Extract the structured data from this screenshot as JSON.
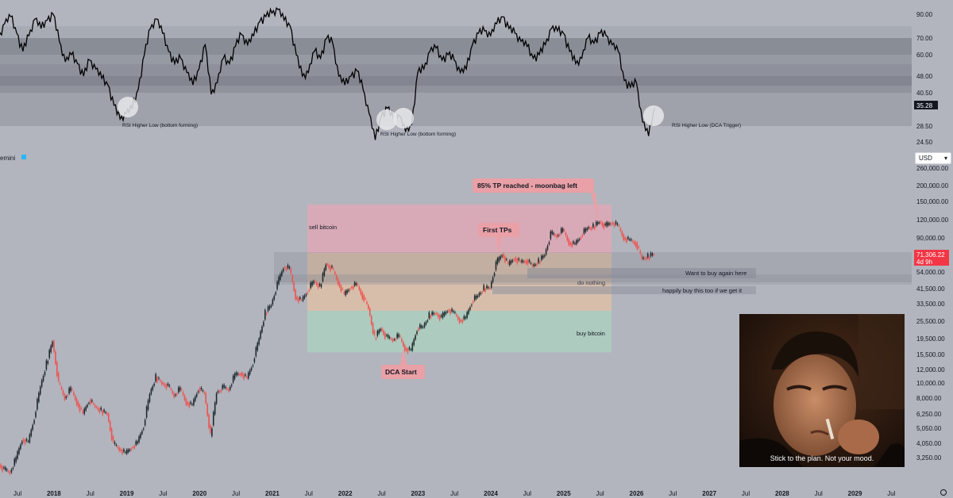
{
  "chart_data": [
    {
      "type": "line",
      "panel": "RSI",
      "y_ticks": [
        "90.00",
        "70.00",
        "60.00",
        "48.00",
        "40.50",
        "28.50",
        "24.50"
      ],
      "current_value": "35.28",
      "bands": [
        {
          "from": 28.5,
          "to": 48.0
        },
        {
          "from": 40.5,
          "to": 48.0
        },
        {
          "from": 48.0,
          "to": 70.0
        },
        {
          "from": 60.0,
          "to": 70.0
        }
      ],
      "annotations": [
        {
          "text": "RSI Higher Low (bottom forming)",
          "date": "2019-01"
        },
        {
          "text": "RSI Higher Low (bottom forming)",
          "date": "2022-09"
        },
        {
          "text": "RSI Higher Low (DCA Trigger)",
          "date": "2026-04"
        }
      ],
      "points": [
        [
          "2017-04",
          70
        ],
        [
          "2017-05",
          82
        ],
        [
          "2017-06",
          88
        ],
        [
          "2017-07",
          74
        ],
        [
          "2017-08",
          62
        ],
        [
          "2017-09",
          72
        ],
        [
          "2017-10",
          86
        ],
        [
          "2017-11",
          78
        ],
        [
          "2017-12",
          85
        ],
        [
          "2018-01",
          90
        ],
        [
          "2018-02",
          68
        ],
        [
          "2018-03",
          56
        ],
        [
          "2018-04",
          60
        ],
        [
          "2018-05",
          55
        ],
        [
          "2018-06",
          48
        ],
        [
          "2018-07",
          57
        ],
        [
          "2018-08",
          52
        ],
        [
          "2018-09",
          47
        ],
        [
          "2018-10",
          44
        ],
        [
          "2018-11",
          36
        ],
        [
          "2018-12",
          31
        ],
        [
          "2019-01",
          33
        ],
        [
          "2019-02",
          35
        ],
        [
          "2019-03",
          42
        ],
        [
          "2019-04",
          60
        ],
        [
          "2019-05",
          78
        ],
        [
          "2019-06",
          86
        ],
        [
          "2019-07",
          74
        ],
        [
          "2019-08",
          62
        ],
        [
          "2019-09",
          55
        ],
        [
          "2019-10",
          58
        ],
        [
          "2019-11",
          50
        ],
        [
          "2019-12",
          44
        ],
        [
          "2020-01",
          52
        ],
        [
          "2020-02",
          66
        ],
        [
          "2020-03",
          40
        ],
        [
          "2020-04",
          45
        ],
        [
          "2020-05",
          58
        ],
        [
          "2020-06",
          55
        ],
        [
          "2020-07",
          65
        ],
        [
          "2020-08",
          73
        ],
        [
          "2020-09",
          66
        ],
        [
          "2020-10",
          72
        ],
        [
          "2020-11",
          84
        ],
        [
          "2020-12",
          88
        ],
        [
          "2021-01",
          91
        ],
        [
          "2021-02",
          94
        ],
        [
          "2021-03",
          85
        ],
        [
          "2021-04",
          80
        ],
        [
          "2021-05",
          60
        ],
        [
          "2021-06",
          48
        ],
        [
          "2021-07",
          50
        ],
        [
          "2021-08",
          62
        ],
        [
          "2021-09",
          58
        ],
        [
          "2021-10",
          70
        ],
        [
          "2021-11",
          67
        ],
        [
          "2021-12",
          48
        ],
        [
          "2022-01",
          44
        ],
        [
          "2022-02",
          48
        ],
        [
          "2022-03",
          51
        ],
        [
          "2022-04",
          42
        ],
        [
          "2022-05",
          33
        ],
        [
          "2022-06",
          25
        ],
        [
          "2022-07",
          32
        ],
        [
          "2022-08",
          35
        ],
        [
          "2022-09",
          31
        ],
        [
          "2022-10",
          32
        ],
        [
          "2022-11",
          27
        ],
        [
          "2022-12",
          29
        ],
        [
          "2023-01",
          50
        ],
        [
          "2023-02",
          52
        ],
        [
          "2023-03",
          62
        ],
        [
          "2023-04",
          64
        ],
        [
          "2023-05",
          57
        ],
        [
          "2023-06",
          60
        ],
        [
          "2023-07",
          57
        ],
        [
          "2023-08",
          50
        ],
        [
          "2023-09",
          52
        ],
        [
          "2023-10",
          66
        ],
        [
          "2023-11",
          74
        ],
        [
          "2023-12",
          76
        ],
        [
          "2024-01",
          72
        ],
        [
          "2024-02",
          82
        ],
        [
          "2024-03",
          88
        ],
        [
          "2024-04",
          78
        ],
        [
          "2024-05",
          74
        ],
        [
          "2024-06",
          68
        ],
        [
          "2024-07",
          65
        ],
        [
          "2024-08",
          58
        ],
        [
          "2024-09",
          60
        ],
        [
          "2024-10",
          66
        ],
        [
          "2024-11",
          78
        ],
        [
          "2024-12",
          76
        ],
        [
          "2025-01",
          74
        ],
        [
          "2025-02",
          62
        ],
        [
          "2025-03",
          55
        ],
        [
          "2025-04",
          58
        ],
        [
          "2025-05",
          70
        ],
        [
          "2025-06",
          67
        ],
        [
          "2025-07",
          74
        ],
        [
          "2025-08",
          72
        ],
        [
          "2025-09",
          66
        ],
        [
          "2025-10",
          62
        ],
        [
          "2025-11",
          46
        ],
        [
          "2025-12",
          43
        ],
        [
          "2026-01",
          45
        ],
        [
          "2026-02",
          30
        ],
        [
          "2026-03",
          26
        ],
        [
          "2026-04",
          35
        ]
      ]
    },
    {
      "type": "candlestick",
      "panel": "Price",
      "source_label": "emini",
      "currency": "USD",
      "y_scale": "log",
      "y_ticks": [
        "260,000.00",
        "200,000.00",
        "150,000.00",
        "120,000.00",
        "90,000.00",
        "71,306.22",
        "54,000.00",
        "41,500.00",
        "33,500.00",
        "25,500.00",
        "19,500.00",
        "15,500.00",
        "12,000.00",
        "10,000.00",
        "8,000.00",
        "6,250.00",
        "5,050.00",
        "4,050.00",
        "3,250.00"
      ],
      "current_price": "71,306.22",
      "countdown": "4d 9h",
      "x_ticks": [
        "Jul",
        "2018",
        "Jul",
        "2019",
        "Jul",
        "2020",
        "Jul",
        "2021",
        "Jul",
        "2022",
        "Jul",
        "2023",
        "Jul",
        "2024",
        "Jul",
        "2025",
        "Jul",
        "2026",
        "Jul",
        "2027",
        "Jul",
        "2028",
        "Jul",
        "2029",
        "Jul"
      ],
      "zones": [
        {
          "label": "sell bitcoin",
          "color": "#f7a1b1",
          "from": 72000,
          "to": 150000
        },
        {
          "label": "do nothing",
          "color": "#f5c59a",
          "from": 30000,
          "to": 72000
        },
        {
          "label": "buy bitcoin",
          "color": "#a9dcc0",
          "from": 16000,
          "to": 30000
        }
      ],
      "levels": [
        {
          "label": "Want to buy again here",
          "from": 46000,
          "to": 72000
        },
        {
          "label": "happily buy this too if we get it",
          "from": 39000,
          "to": 46000
        }
      ],
      "callouts": [
        {
          "label": "85% TP reached - moonbag left"
        },
        {
          "label": "First TPs"
        },
        {
          "label": "DCA Start"
        }
      ],
      "closes": [
        [
          "2017-04",
          3000
        ],
        [
          "2017-05",
          2700
        ],
        [
          "2017-06",
          2600
        ],
        [
          "2017-07",
          3200
        ],
        [
          "2017-08",
          4300
        ],
        [
          "2017-09",
          4100
        ],
        [
          "2017-10",
          6000
        ],
        [
          "2017-11",
          9500
        ],
        [
          "2017-12",
          13500
        ],
        [
          "2018-01",
          19000
        ],
        [
          "2018-02",
          10000
        ],
        [
          "2018-03",
          8000
        ],
        [
          "2018-04",
          9200
        ],
        [
          "2018-05",
          7500
        ],
        [
          "2018-06",
          6300
        ],
        [
          "2018-07",
          7800
        ],
        [
          "2018-08",
          7000
        ],
        [
          "2018-09",
          6600
        ],
        [
          "2018-10",
          6300
        ],
        [
          "2018-11",
          4000
        ],
        [
          "2018-12",
          3700
        ],
        [
          "2019-01",
          3450
        ],
        [
          "2019-02",
          3800
        ],
        [
          "2019-03",
          4100
        ],
        [
          "2019-04",
          5300
        ],
        [
          "2019-05",
          8500
        ],
        [
          "2019-06",
          11000
        ],
        [
          "2019-07",
          10000
        ],
        [
          "2019-08",
          9600
        ],
        [
          "2019-09",
          8300
        ],
        [
          "2019-10",
          9200
        ],
        [
          "2019-11",
          7500
        ],
        [
          "2019-12",
          7200
        ],
        [
          "2020-01",
          9300
        ],
        [
          "2020-02",
          8600
        ],
        [
          "2020-03",
          4500
        ],
        [
          "2020-04",
          8700
        ],
        [
          "2020-05",
          9400
        ],
        [
          "2020-06",
          9100
        ],
        [
          "2020-07",
          11300
        ],
        [
          "2020-08",
          11700
        ],
        [
          "2020-09",
          10800
        ],
        [
          "2020-10",
          13800
        ],
        [
          "2020-11",
          19700
        ],
        [
          "2020-12",
          29000
        ],
        [
          "2021-01",
          33000
        ],
        [
          "2021-02",
          45000
        ],
        [
          "2021-03",
          58000
        ],
        [
          "2021-04",
          57000
        ],
        [
          "2021-05",
          37000
        ],
        [
          "2021-06",
          35000
        ],
        [
          "2021-07",
          41000
        ],
        [
          "2021-08",
          47000
        ],
        [
          "2021-09",
          43000
        ],
        [
          "2021-10",
          61000
        ],
        [
          "2021-11",
          57000
        ],
        [
          "2021-12",
          46000
        ],
        [
          "2022-01",
          38000
        ],
        [
          "2022-02",
          43000
        ],
        [
          "2022-03",
          45000
        ],
        [
          "2022-04",
          38000
        ],
        [
          "2022-05",
          31000
        ],
        [
          "2022-06",
          19800
        ],
        [
          "2022-07",
          23000
        ],
        [
          "2022-08",
          20000
        ],
        [
          "2022-09",
          19400
        ],
        [
          "2022-10",
          20500
        ],
        [
          "2022-11",
          17000
        ],
        [
          "2022-12",
          16500
        ],
        [
          "2023-01",
          23000
        ],
        [
          "2023-02",
          23500
        ],
        [
          "2023-03",
          28000
        ],
        [
          "2023-04",
          29000
        ],
        [
          "2023-05",
          27000
        ],
        [
          "2023-06",
          30400
        ],
        [
          "2023-07",
          29200
        ],
        [
          "2023-08",
          26000
        ],
        [
          "2023-09",
          27000
        ],
        [
          "2023-10",
          34500
        ],
        [
          "2023-11",
          37700
        ],
        [
          "2023-12",
          42200
        ],
        [
          "2024-01",
          42500
        ],
        [
          "2024-02",
          61000
        ],
        [
          "2024-03",
          71000
        ],
        [
          "2024-04",
          60000
        ],
        [
          "2024-05",
          67000
        ],
        [
          "2024-06",
          62700
        ],
        [
          "2024-07",
          64600
        ],
        [
          "2024-08",
          59000
        ],
        [
          "2024-09",
          63300
        ],
        [
          "2024-10",
          70200
        ],
        [
          "2024-11",
          96400
        ],
        [
          "2024-12",
          93400
        ],
        [
          "2025-01",
          102000
        ],
        [
          "2025-02",
          84300
        ],
        [
          "2025-03",
          82500
        ],
        [
          "2025-04",
          94200
        ],
        [
          "2025-05",
          104600
        ],
        [
          "2025-06",
          107100
        ],
        [
          "2025-07",
          115700
        ],
        [
          "2025-08",
          108200
        ],
        [
          "2025-09",
          114000
        ],
        [
          "2025-10",
          109500
        ],
        [
          "2025-11",
          91000
        ],
        [
          "2025-12",
          87500
        ],
        [
          "2026-01",
          84000
        ],
        [
          "2026-02",
          66000
        ],
        [
          "2026-03",
          68000
        ],
        [
          "2026-04",
          71300
        ]
      ]
    }
  ],
  "meme": {
    "caption": "Stick to the plan. Not your mood."
  },
  "colors": {
    "up": "#26a69a",
    "down": "#ef5350",
    "callout": "#e9a0a6",
    "price_badge": "#f23645"
  }
}
